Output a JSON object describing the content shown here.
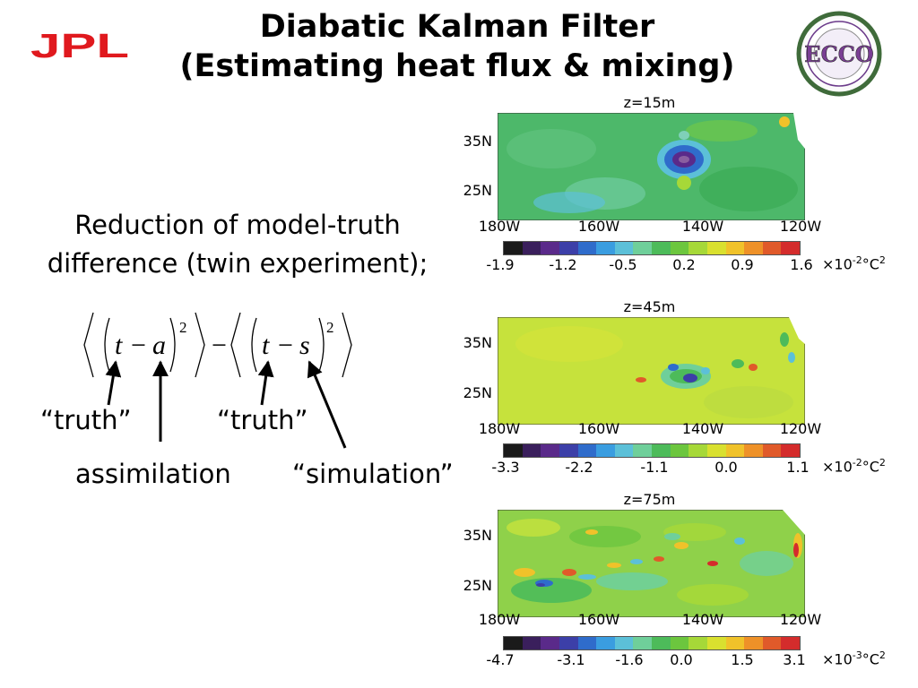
{
  "title": {
    "line1": "Diabatic Kalman Filter",
    "line2": "(Estimating heat flux & mixing)"
  },
  "logo_jpl_text": "JPL",
  "logo_ecco_text": "ECCO",
  "description": {
    "line1": "Reduction of model-truth",
    "line2": "difference (twin experiment);"
  },
  "formula": {
    "left_symbols": [
      "t",
      "a"
    ],
    "right_symbols": [
      "t",
      "s"
    ],
    "exponent": "2",
    "minus": "−"
  },
  "labels": {
    "truth_left": "“truth”",
    "truth_right": "“truth”",
    "assimilation": "assimilation",
    "simulation": "“simulation”"
  },
  "panels": [
    {
      "title": "z=15m",
      "lat_labels": [
        "35N",
        "25N"
      ],
      "lon_labels": [
        "180W",
        "160W",
        "140W",
        "120W"
      ],
      "colorbar_ticks": [
        "-1.9",
        "-1.2",
        "-0.5",
        "0.2",
        "0.9",
        "1.6"
      ],
      "unit_prefix": "×10",
      "unit_exp": "-2",
      "unit_suffix": "°C",
      "unit_pow": "2",
      "background_color": "#4db86a"
    },
    {
      "title": "z=45m",
      "lat_labels": [
        "35N",
        "25N"
      ],
      "lon_labels": [
        "180W",
        "160W",
        "140W",
        "120W"
      ],
      "colorbar_ticks": [
        "-3.3",
        "-2.2",
        "-1.1",
        "0.0",
        "1.1"
      ],
      "unit_prefix": "×10",
      "unit_exp": "-2",
      "unit_suffix": "°C",
      "unit_pow": "2",
      "background_color": "#c6e23c"
    },
    {
      "title": "z=75m",
      "lat_labels": [
        "35N",
        "25N"
      ],
      "lon_labels": [
        "180W",
        "160W",
        "140W",
        "120W"
      ],
      "colorbar_ticks": [
        "-4.7",
        "-3.1",
        "-1.6",
        "0.0",
        "1.5",
        "3.1"
      ],
      "unit_prefix": "×10",
      "unit_exp": "-3",
      "unit_suffix": "°C",
      "unit_pow": "2",
      "background_color": "#8fd14a"
    }
  ],
  "colorbar_colors": [
    "#1a1a1a",
    "#3a1f5c",
    "#5a2a8a",
    "#3c3fa8",
    "#2f6ccb",
    "#3a9de0",
    "#5cc0d8",
    "#6fcf9a",
    "#4dbb5a",
    "#6cc63e",
    "#a6d838",
    "#d9e02f",
    "#f0c22a",
    "#ee9128",
    "#e05a2a",
    "#d42c2c"
  ],
  "accent_colors": {
    "jpl_red": "#e0191e"
  }
}
